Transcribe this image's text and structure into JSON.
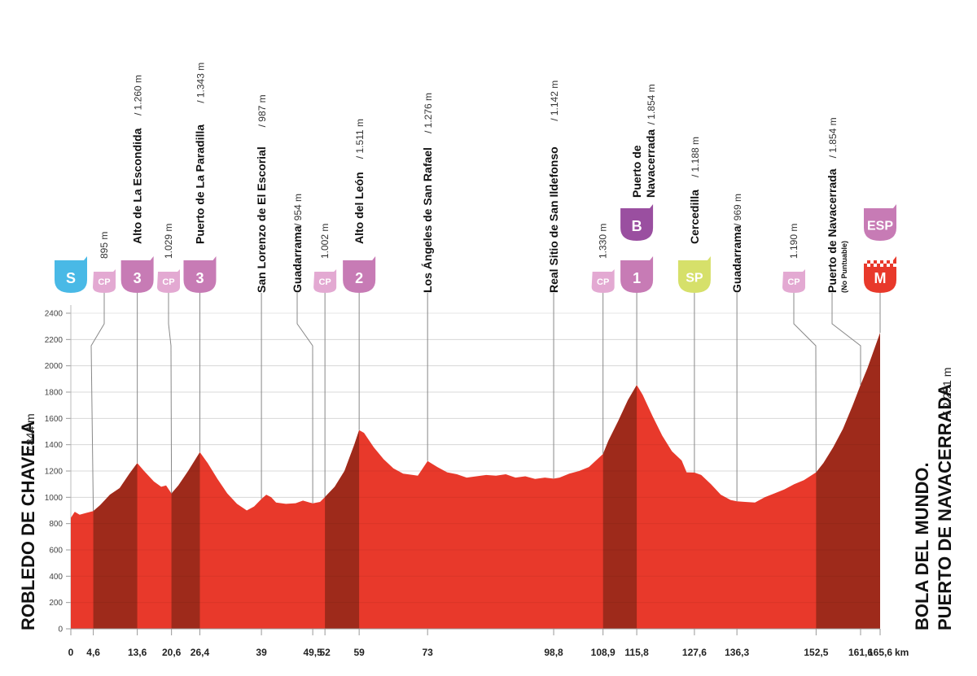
{
  "chart_data": {
    "type": "area",
    "xunit": "km",
    "ylim": [
      0,
      2400
    ],
    "xlim": [
      0,
      165.6
    ],
    "yticks": [
      "0",
      "200",
      "400",
      "600",
      "800",
      "1000",
      "1200",
      "1400",
      "1600",
      "1800",
      "2000",
      "2200",
      "2400"
    ],
    "xticks": [
      "0",
      "4,6",
      "13,6",
      "20,6",
      "26,4",
      "39",
      "49,5",
      "52",
      "59",
      "73",
      "98,8",
      "108,9",
      "115,8",
      "127,6",
      "136,3",
      "152,5",
      "161,6",
      "165,6"
    ],
    "xtick_values": [
      0,
      4.6,
      13.6,
      20.6,
      26.4,
      39,
      49.5,
      52,
      59,
      73,
      98.8,
      108.9,
      115.8,
      127.6,
      136.3,
      152.5,
      161.6,
      165.6
    ],
    "start": {
      "name": "ROBLEDO DE CHAVELA",
      "altitude": "/ 844 m"
    },
    "finish": {
      "line1": "BOLA DEL MUNDO.",
      "line2": "PUERTO DE NAVACERRADA",
      "altitude": "/ 2.251 m"
    },
    "profile": [
      [
        0,
        844
      ],
      [
        0.8,
        890
      ],
      [
        1.8,
        868
      ],
      [
        3,
        880
      ],
      [
        4.6,
        895
      ],
      [
        6,
        940
      ],
      [
        8,
        1020
      ],
      [
        10,
        1070
      ],
      [
        12,
        1180
      ],
      [
        13.6,
        1260
      ],
      [
        15,
        1200
      ],
      [
        17,
        1120
      ],
      [
        18.5,
        1080
      ],
      [
        19.5,
        1090
      ],
      [
        20.6,
        1029
      ],
      [
        22,
        1090
      ],
      [
        24,
        1200
      ],
      [
        26.4,
        1343
      ],
      [
        28,
        1260
      ],
      [
        30,
        1140
      ],
      [
        32,
        1030
      ],
      [
        34,
        950
      ],
      [
        36,
        900
      ],
      [
        37.5,
        930
      ],
      [
        39,
        987
      ],
      [
        40,
        1020
      ],
      [
        41,
        1000
      ],
      [
        42,
        960
      ],
      [
        44,
        950
      ],
      [
        46,
        955
      ],
      [
        47.5,
        975
      ],
      [
        49.5,
        954
      ],
      [
        51,
        965
      ],
      [
        52,
        1002
      ],
      [
        54,
        1080
      ],
      [
        56,
        1200
      ],
      [
        58,
        1400
      ],
      [
        59,
        1511
      ],
      [
        60,
        1490
      ],
      [
        62,
        1380
      ],
      [
        64,
        1290
      ],
      [
        66,
        1220
      ],
      [
        68,
        1180
      ],
      [
        71,
        1165
      ],
      [
        73,
        1276
      ],
      [
        75,
        1230
      ],
      [
        77,
        1190
      ],
      [
        79,
        1175
      ],
      [
        81,
        1150
      ],
      [
        83,
        1160
      ],
      [
        85,
        1170
      ],
      [
        87,
        1165
      ],
      [
        89,
        1175
      ],
      [
        91,
        1150
      ],
      [
        93,
        1160
      ],
      [
        95,
        1140
      ],
      [
        97,
        1150
      ],
      [
        98.8,
        1142
      ],
      [
        100,
        1150
      ],
      [
        102,
        1180
      ],
      [
        104,
        1200
      ],
      [
        106,
        1230
      ],
      [
        108.9,
        1330
      ],
      [
        110,
        1430
      ],
      [
        112,
        1580
      ],
      [
        114,
        1740
      ],
      [
        115.8,
        1854
      ],
      [
        117,
        1780
      ],
      [
        119,
        1620
      ],
      [
        121,
        1470
      ],
      [
        123,
        1350
      ],
      [
        125,
        1280
      ],
      [
        126,
        1190
      ],
      [
        127.6,
        1188
      ],
      [
        129,
        1170
      ],
      [
        131,
        1100
      ],
      [
        133,
        1020
      ],
      [
        135,
        980
      ],
      [
        136.3,
        969
      ],
      [
        138,
        965
      ],
      [
        140,
        960
      ],
      [
        142,
        1000
      ],
      [
        144,
        1030
      ],
      [
        146,
        1060
      ],
      [
        148,
        1100
      ],
      [
        150,
        1130
      ],
      [
        152.5,
        1190
      ],
      [
        154,
        1260
      ],
      [
        156,
        1380
      ],
      [
        158,
        1520
      ],
      [
        160,
        1700
      ],
      [
        161.6,
        1854
      ],
      [
        163,
        1980
      ],
      [
        165.6,
        2251
      ]
    ],
    "climbs": [
      [
        4.6,
        13.6
      ],
      [
        20.6,
        26.4
      ],
      [
        52,
        59
      ],
      [
        108.9,
        115.8
      ],
      [
        152.5,
        165.6
      ]
    ],
    "points": [
      {
        "km": 4.6,
        "name": "",
        "alt": "895 m",
        "badge": "CP",
        "lead": [
          4.6,
          128,
          398,
          112,
          425
        ]
      },
      {
        "km": 13.6,
        "name": "Alto de La Escondida",
        "alt": "/ 1.260 m",
        "badge": "3"
      },
      {
        "km": 20.6,
        "name": "",
        "alt": "1.029 m",
        "badge": "CP",
        "lead": [
          20.6,
          207,
          398,
          210,
          425
        ]
      },
      {
        "km": 26.4,
        "name": "Puerto de La Paradilla",
        "alt": "/ 1.343 m",
        "badge": "3"
      },
      {
        "km": 39,
        "name": "San Lorenzo de El Escorial",
        "alt": "/ 987 m",
        "badge": ""
      },
      {
        "km": 49.5,
        "name": "Guadarrama",
        "alt": "/ 954 m",
        "badge": "",
        "lead": [
          49.5,
          365,
          398,
          384,
          425
        ]
      },
      {
        "km": 52,
        "name": "",
        "alt": "1.002 m",
        "badge": "CP"
      },
      {
        "km": 59,
        "name": "Alto del León",
        "alt": "/ 1.511 m",
        "badge": "2"
      },
      {
        "km": 73,
        "name": "Los Ángeles de San Rafael",
        "alt": "/ 1.276 m",
        "badge": ""
      },
      {
        "km": 98.8,
        "name": "Real Sitio de San Ildefonso",
        "alt": "/ 1.142 m",
        "badge": ""
      },
      {
        "km": 108.9,
        "name": "",
        "alt": "1.330 m",
        "badge": "CP"
      },
      {
        "km": 115.8,
        "name": "Puerto de",
        "name2": "Navacerrada",
        "alt": "/ 1.854 m",
        "badge": "1",
        "badge2": "B"
      },
      {
        "km": 127.6,
        "name": "Cercedilla",
        "alt": "/ 1.188 m",
        "badge": "SP"
      },
      {
        "km": 136.3,
        "name": "Guadarrama",
        "alt": "/ 969 m",
        "badge": ""
      },
      {
        "km": 152.5,
        "name": "",
        "alt": "1.190 m",
        "badge": "CP",
        "lead": [
          152.5,
          975,
          398,
          1002,
          425
        ]
      },
      {
        "km": 161.6,
        "name": "Puerto de Navacerrada",
        "alt": "/ 1.854 m",
        "sub": "(No Puntuable)",
        "badge": "",
        "lead": [
          161.6,
          1022,
          398,
          1057,
          425
        ]
      },
      {
        "km": 165.6,
        "name": "",
        "alt": "",
        "badge": "M",
        "badge2": "ESP"
      }
    ],
    "start_badge": "S"
  },
  "colors": {
    "profile": "#e8392b",
    "climb": "#9e2a1b",
    "cat": "#c77bb5",
    "cp": "#e3a9d2",
    "start": "#49b9e6",
    "bonus": "#9a4fa0",
    "sprint": "#d6e06a",
    "finish": "#e8392b"
  }
}
